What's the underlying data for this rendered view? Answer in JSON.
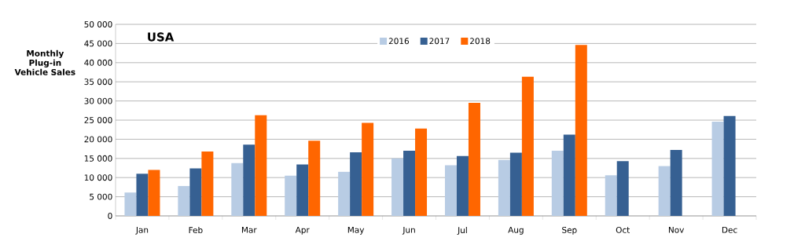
{
  "chart_data": {
    "type": "bar",
    "title": "USA",
    "ylabel": "Monthly Plug-in Vehicle Sales",
    "categories": [
      "Jan",
      "Feb",
      "Mar",
      "Apr",
      "May",
      "Jun",
      "Jul",
      "Aug",
      "Sep",
      "Oct",
      "Nov",
      "Dec"
    ],
    "series": [
      {
        "name": "2016",
        "color": "#b8cce4",
        "values": [
          6100,
          7800,
          13800,
          10500,
          11500,
          15000,
          13200,
          14600,
          17000,
          10600,
          13000,
          24600
        ]
      },
      {
        "name": "2017",
        "color": "#366092",
        "values": [
          11000,
          12400,
          18600,
          13400,
          16600,
          17000,
          15600,
          16500,
          21200,
          14300,
          17200,
          26100
        ]
      },
      {
        "name": "2018",
        "color": "#ff6600",
        "values": [
          12000,
          16800,
          26300,
          19600,
          24300,
          22800,
          29500,
          36300,
          44600,
          null,
          null,
          null
        ]
      }
    ],
    "ylim": [
      0,
      50000
    ],
    "yticks": [
      0,
      {
        "value": 5000,
        "label": "5 000"
      },
      {
        "value": 10000,
        "label": "10 000"
      },
      {
        "value": 15000,
        "label": "15 000"
      },
      {
        "value": 20000,
        "label": "20 000"
      },
      {
        "value": 25000,
        "label": "25 000"
      },
      {
        "value": 30000,
        "label": "30 000"
      },
      {
        "value": 35000,
        "label": "35 000"
      },
      {
        "value": 40000,
        "label": "40 000"
      },
      {
        "value": 45000,
        "label": "45 000"
      },
      {
        "value": 50000,
        "label": "50 000"
      }
    ],
    "grid": "y",
    "legend": "top"
  }
}
